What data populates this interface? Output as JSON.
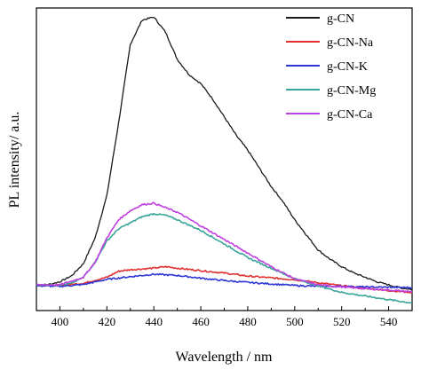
{
  "chart_data": {
    "type": "line",
    "title": "",
    "xlabel": "Wavelength / nm",
    "ylabel": "PL intensity/ a.u.",
    "xlim": [
      390,
      550
    ],
    "ylim": [
      0,
      100
    ],
    "x_ticks": [
      "400",
      "420",
      "440",
      "460",
      "480",
      "500",
      "520",
      "540"
    ],
    "x_tick_values": [
      400,
      420,
      440,
      460,
      480,
      500,
      520,
      540
    ],
    "y_ticks_labeled": false,
    "grid": false,
    "legend_position": "top-right",
    "series": [
      {
        "name": "g-CN",
        "color": "#1a1a1a",
        "x": [
          390,
          395,
          400,
          405,
          410,
          415,
          420,
          425,
          430,
          435,
          440,
          445,
          450,
          455,
          460,
          465,
          470,
          475,
          480,
          485,
          490,
          495,
          500,
          505,
          510,
          515,
          520,
          525,
          530,
          535,
          540,
          545,
          550
        ],
        "values": [
          8.5,
          8.6,
          9.5,
          11.5,
          15.5,
          24,
          38,
          62,
          88,
          96,
          97,
          92,
          83,
          78,
          75,
          70,
          64,
          58,
          53,
          47,
          41,
          36,
          30,
          25,
          20,
          17,
          14.5,
          12.5,
          11,
          9.5,
          8.5,
          7.5,
          7
        ]
      },
      {
        "name": "g-CN-Na",
        "color": "#e03030",
        "x": [
          390,
          400,
          410,
          420,
          425,
          430,
          440,
          445,
          450,
          460,
          470,
          480,
          490,
          500,
          510,
          520,
          530,
          540,
          550
        ],
        "values": [
          8.5,
          8.3,
          9,
          11,
          13,
          13.5,
          14,
          14.5,
          14,
          13.2,
          12.4,
          11.4,
          10.8,
          10.2,
          9.2,
          8.2,
          7.4,
          6.6,
          6
        ]
      },
      {
        "name": "g-CN-K",
        "color": "#2d36d4",
        "x": [
          390,
          400,
          410,
          420,
          430,
          440,
          450,
          460,
          470,
          480,
          490,
          500,
          510,
          520,
          530,
          540,
          550
        ],
        "values": [
          8.2,
          8,
          8.6,
          10.3,
          11.2,
          12,
          11.6,
          10.7,
          9.9,
          9.3,
          8.8,
          8.3,
          8,
          8,
          7.8,
          7.7,
          7.6
        ]
      },
      {
        "name": "g-CN-Mg",
        "color": "#3aa59a",
        "x": [
          390,
          400,
          405,
          410,
          415,
          420,
          425,
          430,
          435,
          440,
          445,
          450,
          460,
          470,
          480,
          490,
          500,
          510,
          520,
          530,
          540,
          550
        ],
        "values": [
          8.5,
          8.5,
          9,
          11,
          16,
          23,
          27,
          29,
          31,
          32,
          31.5,
          30,
          26.5,
          22,
          17.5,
          14,
          10.5,
          8.2,
          6,
          4.8,
          3.6,
          2.5
        ]
      },
      {
        "name": "g-CN-Ca",
        "color": "#c040e0",
        "x": [
          390,
          400,
          410,
          415,
          420,
          425,
          430,
          435,
          440,
          445,
          450,
          460,
          470,
          480,
          490,
          500,
          510,
          520,
          530,
          540,
          550
        ],
        "values": [
          8.5,
          8.5,
          11,
          16,
          24,
          30,
          33,
          35,
          35.5,
          34,
          32.5,
          28,
          23.5,
          19,
          14.5,
          10.5,
          8.5,
          7.8,
          7.2,
          6.8,
          6.2
        ]
      }
    ]
  }
}
